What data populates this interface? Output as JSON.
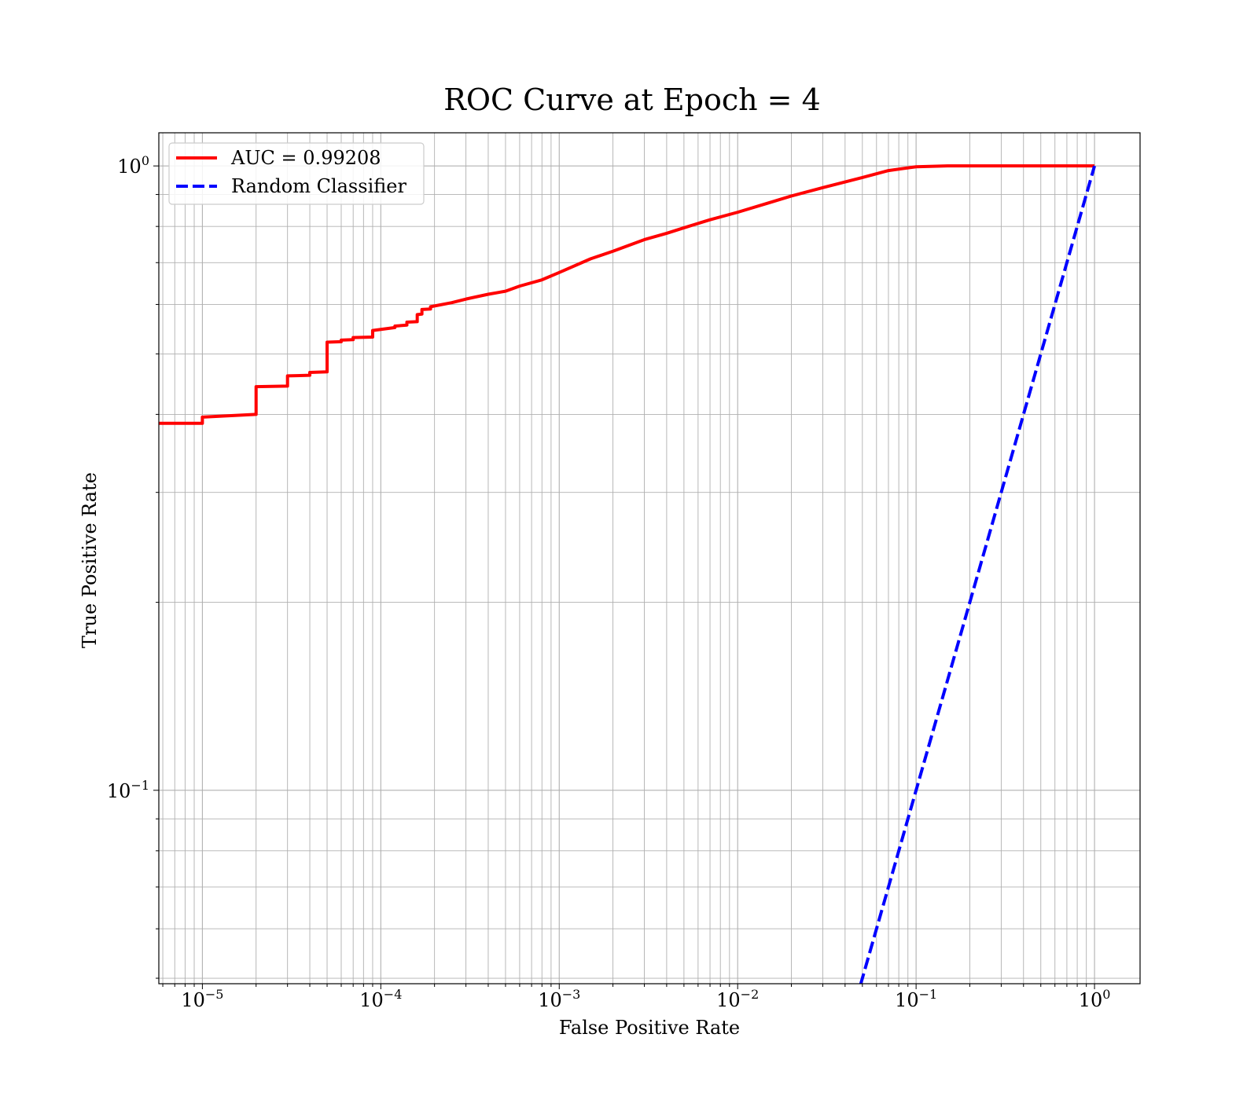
{
  "chart_data": {
    "type": "line",
    "title": "ROC Curve at Epoch = 4",
    "xlabel": "False Positive Rate",
    "ylabel": "True Positive Rate",
    "xscale": "log",
    "yscale": "log",
    "xlim": [
      5.7e-06,
      1.8
    ],
    "ylim": [
      0.049,
      1.13
    ],
    "x_ticks": [
      {
        "base": "10",
        "exp": "−5"
      },
      {
        "base": "10",
        "exp": "−4"
      },
      {
        "base": "10",
        "exp": "−3"
      },
      {
        "base": "10",
        "exp": "−2"
      },
      {
        "base": "10",
        "exp": "−1"
      },
      {
        "base": "10",
        "exp": "0"
      }
    ],
    "y_ticks": [
      {
        "base": "10",
        "exp": "−1"
      },
      {
        "base": "10",
        "exp": "0"
      }
    ],
    "grid": true,
    "legend_position": "top-left",
    "series": [
      {
        "name": "AUC = 0.99208",
        "color": "#ff0000",
        "style": "solid",
        "x": [
          5.7e-06,
          1e-05,
          1e-05,
          2e-05,
          2e-05,
          3e-05,
          3e-05,
          4e-05,
          4e-05,
          5e-05,
          5e-05,
          6e-05,
          6e-05,
          7e-05,
          7e-05,
          9e-05,
          9e-05,
          0.00012,
          0.00012,
          0.00014,
          0.00014,
          0.00016,
          0.00016,
          0.00017,
          0.00017,
          0.00019,
          0.00019,
          0.00025,
          0.0003,
          0.0004,
          0.0005,
          0.0006,
          0.0008,
          0.001,
          0.0015,
          0.002,
          0.003,
          0.004,
          0.005,
          0.007,
          0.01,
          0.015,
          0.02,
          0.03,
          0.05,
          0.07,
          0.1,
          0.15,
          0.2,
          0.5,
          1.0
        ],
        "y": [
          0.387,
          0.387,
          0.396,
          0.4,
          0.443,
          0.444,
          0.461,
          0.462,
          0.467,
          0.468,
          0.522,
          0.523,
          0.526,
          0.527,
          0.531,
          0.532,
          0.545,
          0.551,
          0.554,
          0.556,
          0.562,
          0.563,
          0.578,
          0.579,
          0.589,
          0.59,
          0.595,
          0.604,
          0.612,
          0.623,
          0.63,
          0.642,
          0.657,
          0.675,
          0.71,
          0.73,
          0.762,
          0.78,
          0.796,
          0.82,
          0.843,
          0.873,
          0.895,
          0.923,
          0.958,
          0.983,
          0.997,
          1.0,
          1.0,
          1.0,
          1.0
        ]
      },
      {
        "name": "Random Classifier",
        "color": "#0000ff",
        "style": "dashed",
        "x": [
          0.0488,
          1.0
        ],
        "y": [
          0.0488,
          1.0
        ]
      }
    ]
  }
}
